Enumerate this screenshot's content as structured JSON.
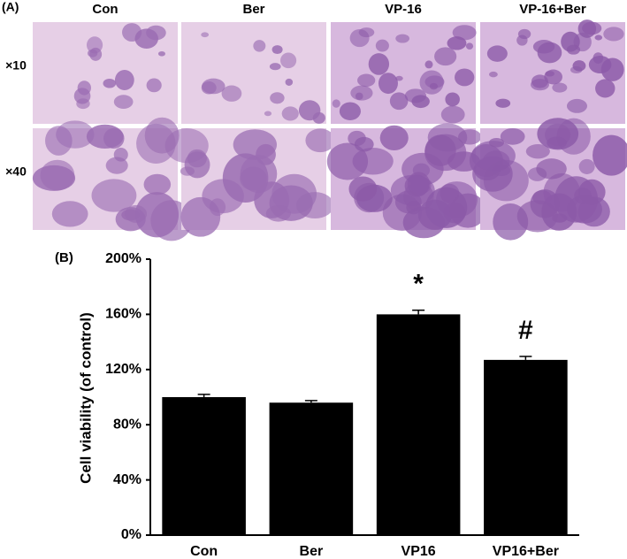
{
  "panel_a": {
    "label": "(A)",
    "columns": [
      "Con",
      "Ber",
      "VP-16",
      "VP-16+Ber"
    ],
    "rows": [
      "×10",
      "×40"
    ]
  },
  "chart_data": {
    "type": "bar",
    "label": "(B)",
    "y_label": "Cell viability (of control)",
    "categories": [
      "Con",
      "Ber",
      "VP16",
      "VP16+Ber"
    ],
    "values": [
      100,
      96,
      160,
      127
    ],
    "errors": [
      2,
      1.5,
      3,
      2.5
    ],
    "annotations": [
      null,
      null,
      "*",
      "#"
    ],
    "color": "#000000",
    "ylim": [
      0,
      200
    ],
    "yticks": [
      {
        "value": 0,
        "label": "0%"
      },
      {
        "value": 40,
        "label": "40%"
      },
      {
        "value": 80,
        "label": "80%"
      },
      {
        "value": 120,
        "label": "120%"
      },
      {
        "value": 160,
        "label": "160%"
      },
      {
        "value": 200,
        "label": "200%"
      }
    ]
  }
}
